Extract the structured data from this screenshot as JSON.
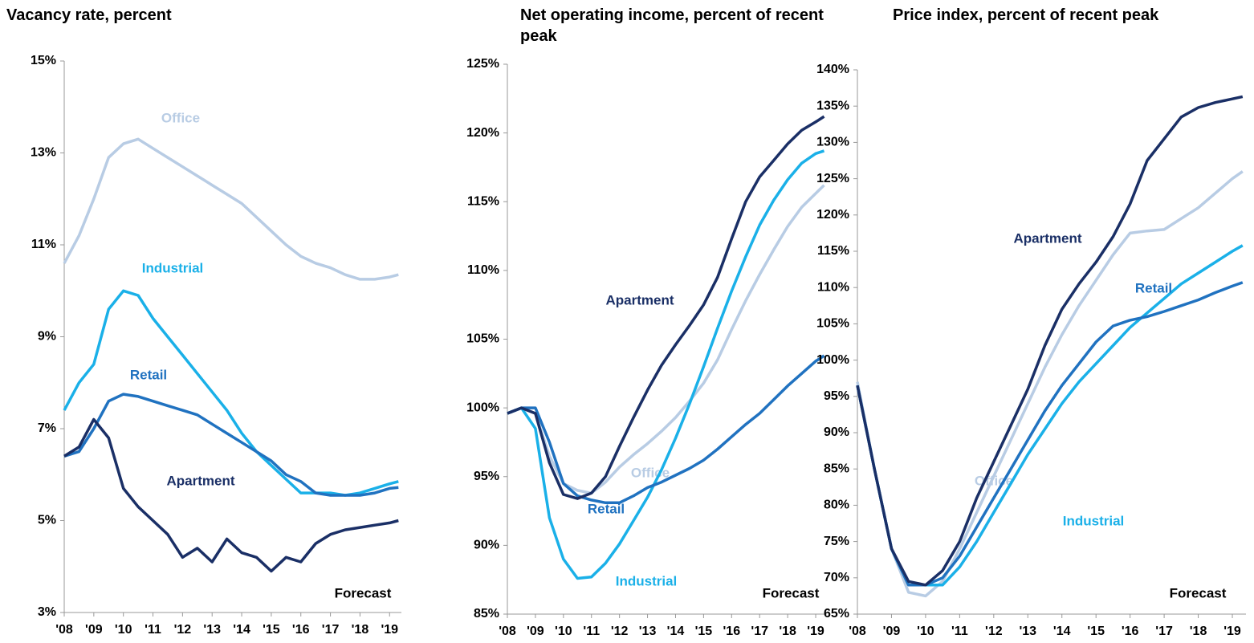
{
  "chart_data": [
    {
      "type": "line",
      "title": "Vacancy rate, percent",
      "annotation": "Forecast",
      "x": [
        2008,
        2008.5,
        2009,
        2009.5,
        2010,
        2010.5,
        2011,
        2011.5,
        2012,
        2012.5,
        2013,
        2013.5,
        2014,
        2014.5,
        2015,
        2015.5,
        2016,
        2016.5,
        2017,
        2017.5,
        2018,
        2018.5,
        2019,
        2019.3
      ],
      "xlim": [
        2008,
        2019.4
      ],
      "xticks": [
        {
          "value": 2008,
          "label": "'08"
        },
        {
          "value": 2009,
          "label": "'09"
        },
        {
          "value": 2010,
          "label": "'10"
        },
        {
          "value": 2011,
          "label": "'11"
        },
        {
          "value": 2012,
          "label": "'12"
        },
        {
          "value": 2013,
          "label": "'13"
        },
        {
          "value": 2014,
          "label": "'14"
        },
        {
          "value": 2015,
          "label": "'15"
        },
        {
          "value": 2016,
          "label": "'16"
        },
        {
          "value": 2017,
          "label": "'17"
        },
        {
          "value": 2018,
          "label": "'18"
        },
        {
          "value": 2019,
          "label": "'19"
        }
      ],
      "ylim": [
        3,
        15
      ],
      "yticks": [
        {
          "value": 3,
          "label": "3%"
        },
        {
          "value": 5,
          "label": "5%"
        },
        {
          "value": 7,
          "label": "7%"
        },
        {
          "value": 9,
          "label": "9%"
        },
        {
          "value": 11,
          "label": "11%"
        },
        {
          "value": 13,
          "label": "13%"
        },
        {
          "value": 15,
          "label": "15%"
        }
      ],
      "series": [
        {
          "name": "Office",
          "color": "#b8cce4",
          "values": [
            10.6,
            11.2,
            12.0,
            12.9,
            13.2,
            13.3,
            13.1,
            12.9,
            12.7,
            12.5,
            12.3,
            12.1,
            11.9,
            11.6,
            11.3,
            11.0,
            10.75,
            10.6,
            10.5,
            10.35,
            10.25,
            10.25,
            10.3,
            10.35
          ]
        },
        {
          "name": "Industrial",
          "color": "#1ab0e8",
          "values": [
            7.4,
            8.0,
            8.4,
            9.6,
            10.0,
            9.9,
            9.4,
            9.0,
            8.6,
            8.2,
            7.8,
            7.4,
            6.9,
            6.5,
            6.2,
            5.9,
            5.6,
            5.6,
            5.6,
            5.55,
            5.6,
            5.7,
            5.8,
            5.85
          ]
        },
        {
          "name": "Retail",
          "color": "#2072c0",
          "values": [
            6.4,
            6.5,
            7.0,
            7.6,
            7.75,
            7.7,
            7.6,
            7.5,
            7.4,
            7.3,
            7.1,
            6.9,
            6.7,
            6.5,
            6.3,
            6.0,
            5.85,
            5.6,
            5.55,
            5.55,
            5.55,
            5.6,
            5.7,
            5.72
          ]
        },
        {
          "name": "Apartment",
          "color": "#1a2f66",
          "values": [
            6.4,
            6.6,
            7.2,
            6.8,
            5.7,
            5.3,
            5.0,
            4.7,
            4.2,
            4.4,
            4.1,
            4.6,
            4.3,
            4.2,
            3.9,
            4.2,
            4.1,
            4.5,
            4.7,
            4.8,
            4.85,
            4.9,
            4.95,
            5.0
          ]
        }
      ]
    },
    {
      "type": "line",
      "title": "Net operating income, percent of recent peak",
      "annotation": "Forecast",
      "x": [
        2008,
        2008.5,
        2009,
        2009.5,
        2010,
        2010.5,
        2011,
        2011.5,
        2012,
        2012.5,
        2013,
        2013.5,
        2014,
        2014.5,
        2015,
        2015.5,
        2016,
        2016.5,
        2017,
        2017.5,
        2018,
        2018.5,
        2019,
        2019.3
      ],
      "xlim": [
        2008,
        2019.4
      ],
      "xticks": [
        {
          "value": 2008,
          "label": "'08"
        },
        {
          "value": 2009,
          "label": "'09"
        },
        {
          "value": 2010,
          "label": "'10"
        },
        {
          "value": 2011,
          "label": "'11"
        },
        {
          "value": 2012,
          "label": "'12"
        },
        {
          "value": 2013,
          "label": "'13"
        },
        {
          "value": 2014,
          "label": "'14"
        },
        {
          "value": 2015,
          "label": "'15"
        },
        {
          "value": 2016,
          "label": "'16"
        },
        {
          "value": 2017,
          "label": "'17"
        },
        {
          "value": 2018,
          "label": "'18"
        },
        {
          "value": 2019,
          "label": "'19"
        }
      ],
      "ylim": [
        85,
        125
      ],
      "yticks": [
        {
          "value": 85,
          "label": "85%"
        },
        {
          "value": 90,
          "label": "90%"
        },
        {
          "value": 95,
          "label": "95%"
        },
        {
          "value": 100,
          "label": "100%"
        },
        {
          "value": 105,
          "label": "105%"
        },
        {
          "value": 110,
          "label": "110%"
        },
        {
          "value": 115,
          "label": "115%"
        },
        {
          "value": 120,
          "label": "120%"
        },
        {
          "value": 125,
          "label": "125%"
        }
      ],
      "series": [
        {
          "name": "Office",
          "color": "#b8cce4",
          "values": [
            99.6,
            100,
            99.6,
            96.5,
            94.5,
            94,
            93.8,
            94.6,
            95.7,
            96.6,
            97.4,
            98.3,
            99.3,
            100.5,
            101.8,
            103.5,
            105.7,
            107.8,
            109.7,
            111.5,
            113.2,
            114.6,
            115.6,
            116.2
          ]
        },
        {
          "name": "Industrial",
          "color": "#1ab0e8",
          "values": [
            99.6,
            100,
            98.5,
            92,
            89,
            87.6,
            87.7,
            88.7,
            90.1,
            91.8,
            93.5,
            95.5,
            97.8,
            100.3,
            103,
            105.8,
            108.5,
            111,
            113.3,
            115.1,
            116.6,
            117.8,
            118.5,
            118.7
          ]
        },
        {
          "name": "Retail",
          "color": "#2072c0",
          "values": [
            99.6,
            100,
            100,
            97.5,
            94.5,
            93.6,
            93.3,
            93.1,
            93.1,
            93.6,
            94.2,
            94.6,
            95.1,
            95.6,
            96.2,
            97,
            97.9,
            98.8,
            99.6,
            100.6,
            101.6,
            102.5,
            103.4,
            103.8
          ]
        },
        {
          "name": "Apartment",
          "color": "#1a2f66",
          "values": [
            99.6,
            100,
            99.6,
            96,
            93.7,
            93.4,
            93.8,
            95,
            97.2,
            99.3,
            101.3,
            103.1,
            104.6,
            106,
            107.5,
            109.5,
            112.3,
            115,
            116.8,
            118,
            119.2,
            120.2,
            120.8,
            121.2
          ]
        }
      ]
    },
    {
      "type": "line",
      "title": "Price index, percent of recent peak",
      "annotation": "Forecast",
      "x": [
        2008,
        2008.5,
        2009,
        2009.5,
        2010,
        2010.5,
        2011,
        2011.5,
        2012,
        2012.5,
        2013,
        2013.5,
        2014,
        2014.5,
        2015,
        2015.5,
        2016,
        2016.5,
        2017,
        2017.5,
        2018,
        2018.5,
        2019,
        2019.3
      ],
      "xlim": [
        2008,
        2019.4
      ],
      "xticks": [
        {
          "value": 2008,
          "label": "'08"
        },
        {
          "value": 2009,
          "label": "'09"
        },
        {
          "value": 2010,
          "label": "'10"
        },
        {
          "value": 2011,
          "label": "'11"
        },
        {
          "value": 2012,
          "label": "'12"
        },
        {
          "value": 2013,
          "label": "'13"
        },
        {
          "value": 2014,
          "label": "'14"
        },
        {
          "value": 2015,
          "label": "'15"
        },
        {
          "value": 2016,
          "label": "'16"
        },
        {
          "value": 2017,
          "label": "'17"
        },
        {
          "value": 2018,
          "label": "'18"
        },
        {
          "value": 2019,
          "label": "'19"
        }
      ],
      "ylim": [
        65,
        140
      ],
      "yticks": [
        {
          "value": 65,
          "label": "65%"
        },
        {
          "value": 70,
          "label": "70%"
        },
        {
          "value": 75,
          "label": "75%"
        },
        {
          "value": 80,
          "label": "80%"
        },
        {
          "value": 85,
          "label": "85%"
        },
        {
          "value": 90,
          "label": "90%"
        },
        {
          "value": 95,
          "label": "95%"
        },
        {
          "value": 100,
          "label": "100%"
        },
        {
          "value": 105,
          "label": "105%"
        },
        {
          "value": 110,
          "label": "110%"
        },
        {
          "value": 115,
          "label": "115%"
        },
        {
          "value": 120,
          "label": "120%"
        },
        {
          "value": 125,
          "label": "125%"
        },
        {
          "value": 130,
          "label": "130%"
        },
        {
          "value": 135,
          "label": "135%"
        },
        {
          "value": 140,
          "label": "140%"
        }
      ],
      "series": [
        {
          "name": "Office",
          "color": "#b8cce4",
          "values": [
            97,
            85,
            74,
            68,
            67.5,
            69.5,
            74,
            79,
            84,
            89,
            94,
            99,
            103.5,
            107.5,
            111,
            114.5,
            117.5,
            117.8,
            118,
            119.5,
            121,
            123,
            125,
            126
          ]
        },
        {
          "name": "Industrial",
          "color": "#1ab0e8",
          "values": [
            96.5,
            85,
            74,
            69,
            69,
            69,
            71.5,
            75,
            79,
            83,
            87,
            90.5,
            94,
            97,
            99.5,
            102,
            104.5,
            106.5,
            108.5,
            110.5,
            112,
            113.5,
            115,
            115.8
          ]
        },
        {
          "name": "Retail",
          "color": "#2072c0",
          "values": [
            96.5,
            85,
            74,
            69,
            69,
            70,
            73,
            77,
            81,
            85,
            89,
            93,
            96.5,
            99.5,
            102.5,
            104.7,
            105.5,
            106,
            106.7,
            107.5,
            108.3,
            109.3,
            110.2,
            110.7
          ]
        },
        {
          "name": "Apartment",
          "color": "#1a2f66",
          "values": [
            96.5,
            85,
            74,
            69.5,
            69,
            71,
            75,
            81,
            86,
            91,
            96,
            102,
            107,
            110.5,
            113.5,
            117,
            121.5,
            127.5,
            130.5,
            133.5,
            134.8,
            135.5,
            136,
            136.3
          ]
        }
      ]
    }
  ]
}
